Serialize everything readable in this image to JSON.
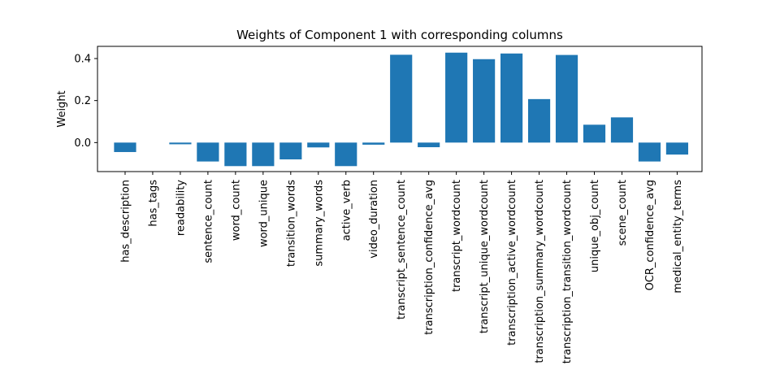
{
  "chart_data": {
    "type": "bar",
    "title": "Weights of Component 1 with corresponding columns",
    "xlabel": "",
    "ylabel": "Weight",
    "ylim": [
      -0.138,
      0.458
    ],
    "yticks": [
      0.0,
      0.2,
      0.4
    ],
    "ytick_labels": [
      "0.0",
      "0.2",
      "0.4"
    ],
    "grid": false,
    "bar_color": "#1f77b4",
    "categories": [
      "has_description",
      "has_tags",
      "readability",
      "sentence_count",
      "word_count",
      "word_unique",
      "transition_words",
      "summary_words",
      "active_verb",
      "video_duration",
      "transcript_sentence_count",
      "transcription_confidence_avg",
      "transcript_wordcount",
      "transcript_unique_wordcount",
      "transcription_active_wordcount",
      "transcription_summary_wordcount",
      "transcription_transition_wordcount",
      "unique_obj_count",
      "scene_count",
      "OCR_confidence_avg",
      "medical_entity_terms"
    ],
    "values": [
      -0.045,
      0.0,
      -0.008,
      -0.09,
      -0.112,
      -0.112,
      -0.08,
      -0.023,
      -0.112,
      -0.01,
      0.418,
      -0.022,
      0.428,
      0.397,
      0.424,
      0.207,
      0.417,
      0.085,
      0.12,
      -0.09,
      -0.057
    ]
  }
}
